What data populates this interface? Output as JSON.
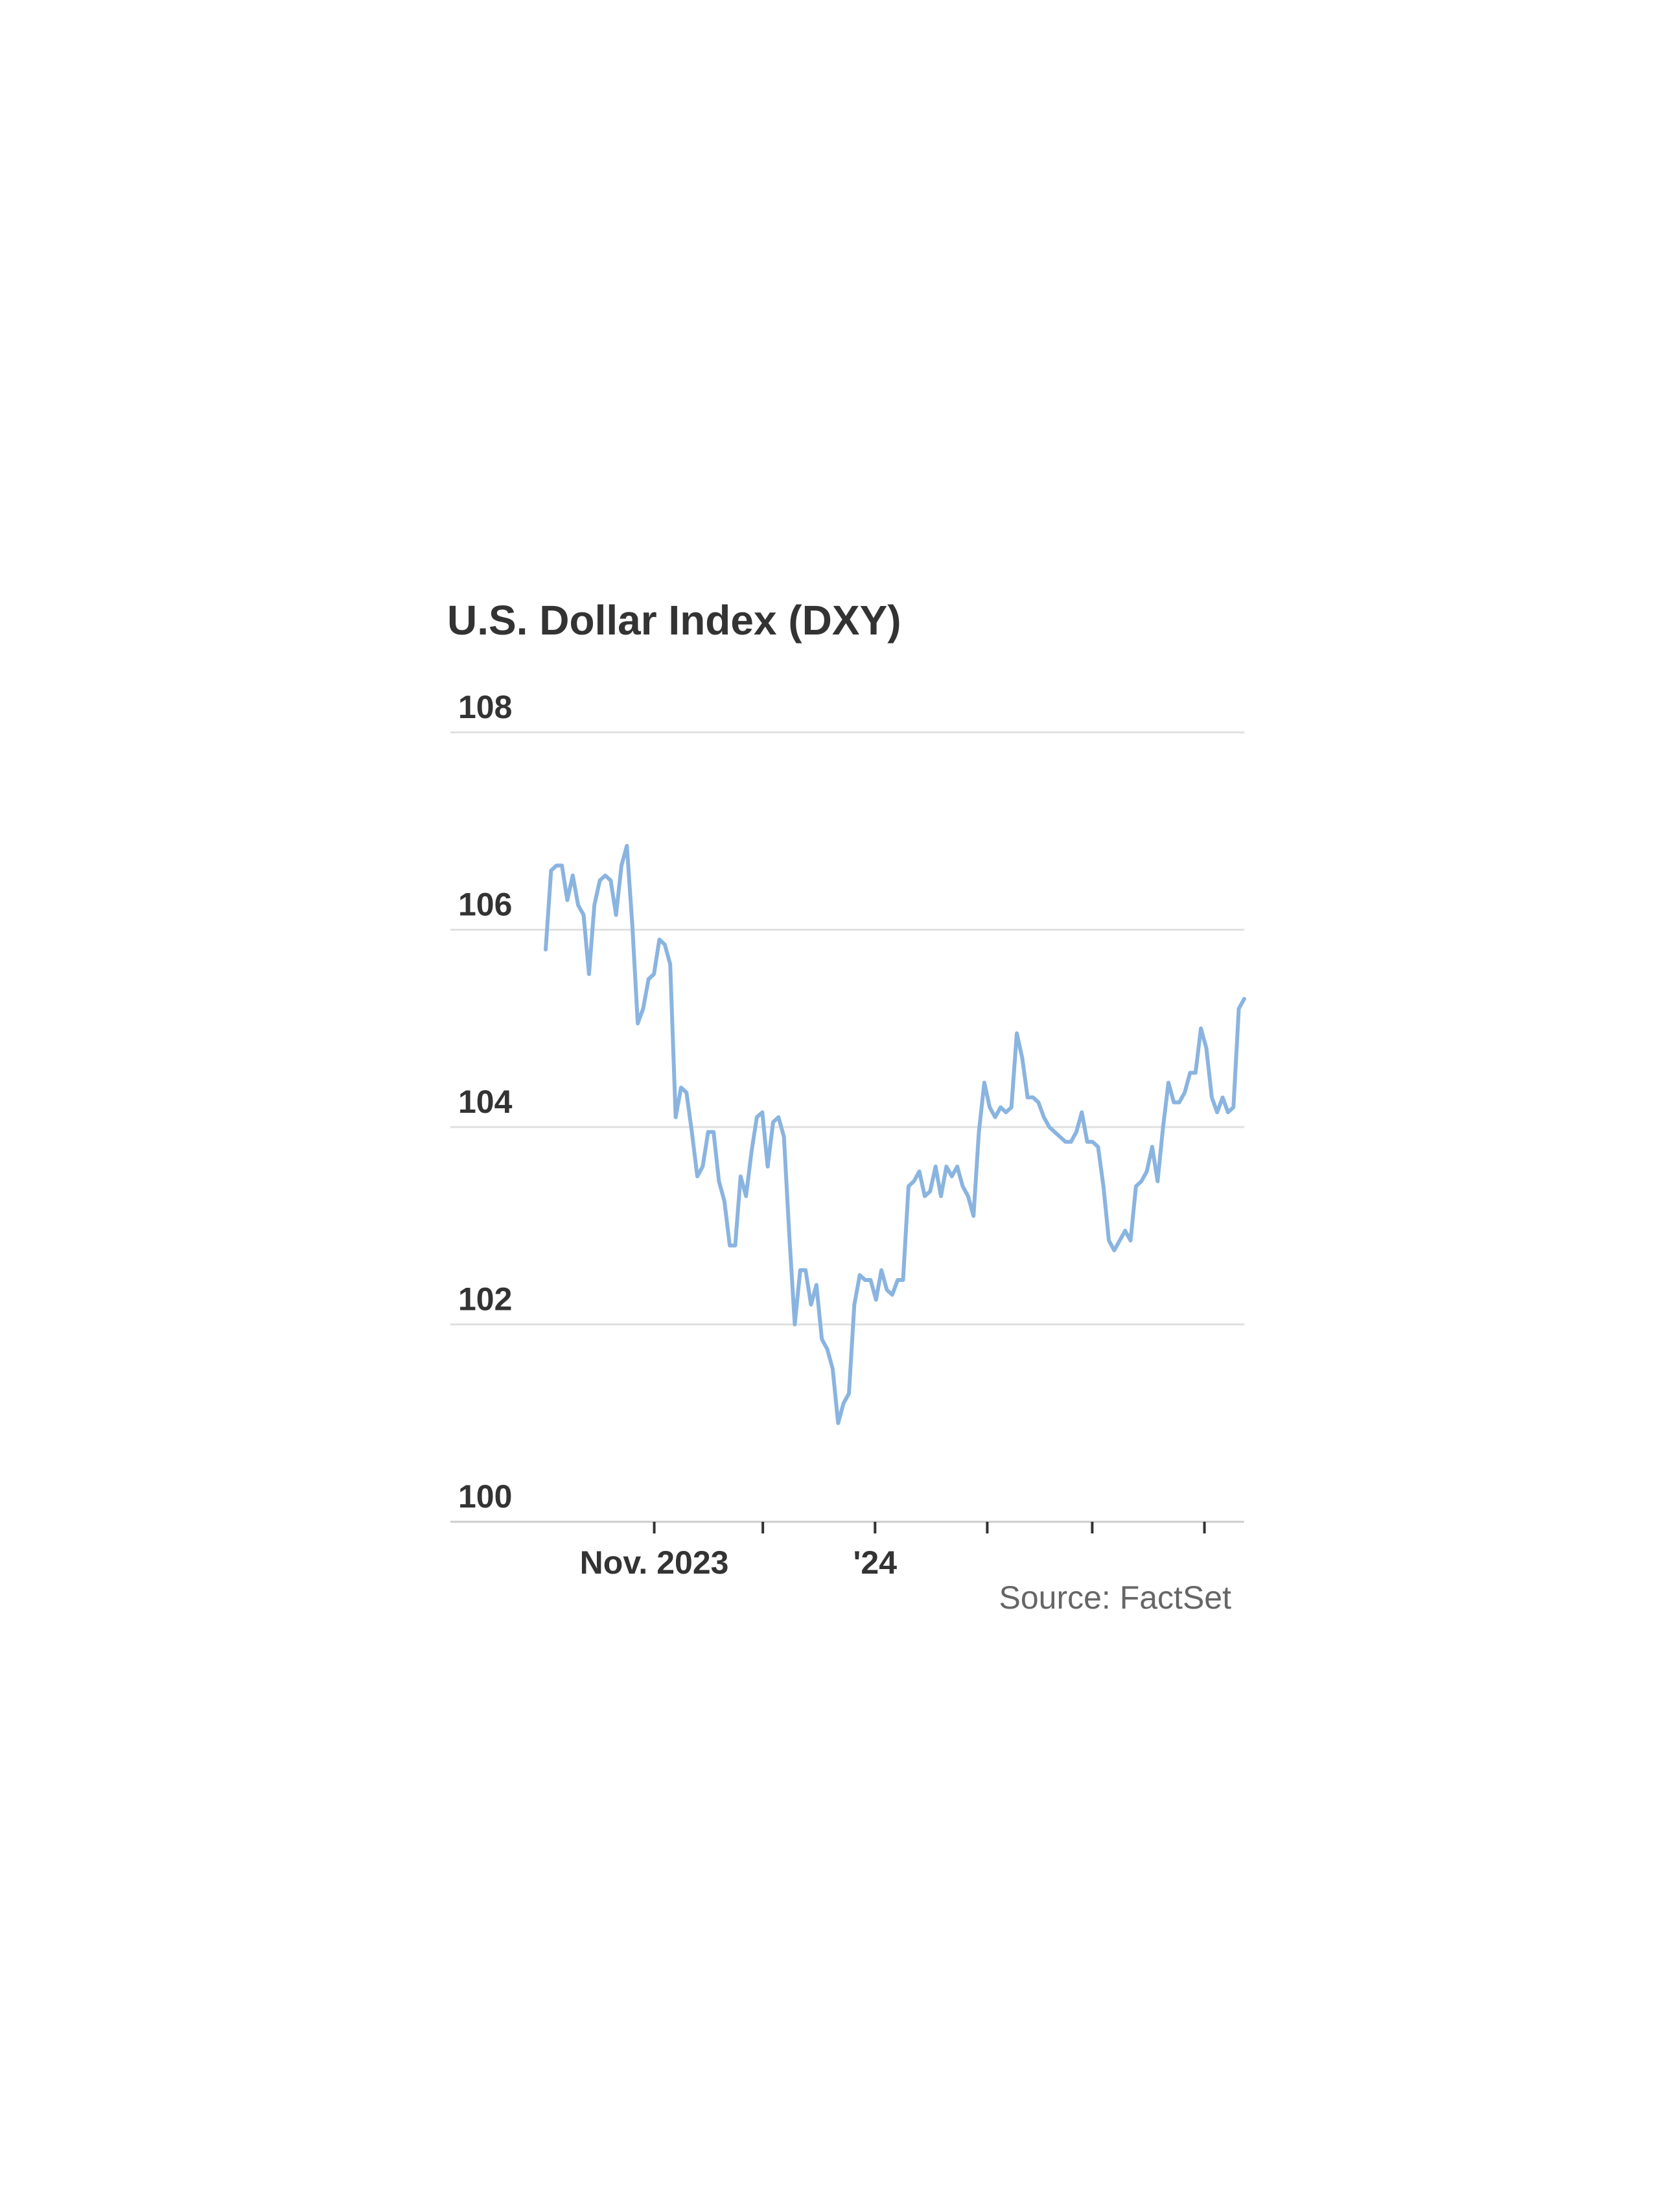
{
  "chart_data": {
    "type": "line",
    "title": "U.S. Dollar Index (DXY)",
    "source": "Source: FactSet",
    "xlabel": "",
    "ylabel": "",
    "ylim": [
      100,
      108
    ],
    "yticks": [
      100,
      102,
      104,
      106,
      108
    ],
    "grid": true,
    "x_start": "2023-10-02",
    "x_end": "2024-04-12",
    "xticks": [
      {
        "date": "2023-11-01",
        "label": "Nov. 2023"
      },
      {
        "date": "2023-12-01",
        "label": ""
      },
      {
        "date": "2024-01-01",
        "label": "'24"
      },
      {
        "date": "2024-02-01",
        "label": ""
      },
      {
        "date": "2024-03-01",
        "label": ""
      },
      {
        "date": "2024-04-01",
        "label": ""
      }
    ],
    "line_color": "#8ab4e0",
    "series": [
      {
        "values": [
          105.8,
          106.6,
          106.65,
          106.65,
          106.3,
          106.55,
          106.25,
          106.15,
          105.55,
          106.25,
          106.5,
          106.55,
          106.5,
          106.15,
          106.65,
          106.85,
          106.05,
          105.05,
          105.2,
          105.5,
          105.55,
          105.9,
          105.85,
          105.65,
          104.1,
          104.4,
          104.35,
          103.95,
          103.5,
          103.6,
          103.95,
          103.95,
          103.45,
          103.25,
          102.8,
          102.8,
          103.5,
          103.3,
          103.75,
          104.1,
          104.15,
          103.6,
          104.05,
          104.1,
          103.9,
          102.9,
          102.0,
          102.55,
          102.55,
          102.2,
          102.4,
          101.85,
          101.75,
          101.55,
          101.0,
          101.2,
          101.3,
          102.2,
          102.5,
          102.45,
          102.45,
          102.25,
          102.55,
          102.35,
          102.3,
          102.45,
          102.45,
          103.4,
          103.45,
          103.55,
          103.3,
          103.35,
          103.6,
          103.3,
          103.6,
          103.5,
          103.6,
          103.4,
          103.3,
          103.1,
          103.95,
          104.45,
          104.2,
          104.1,
          104.2,
          104.15,
          104.2,
          104.95,
          104.7,
          104.3,
          104.3,
          104.25,
          104.1,
          104.0,
          103.95,
          103.9,
          103.85,
          103.85,
          103.95,
          104.15,
          103.85,
          103.85,
          103.8,
          103.4,
          102.85,
          102.75,
          102.85,
          102.95,
          102.85,
          103.4,
          103.45,
          103.55,
          103.8,
          103.45,
          104.0,
          104.45,
          104.25,
          104.25,
          104.35,
          104.55,
          104.55,
          105.0,
          104.8,
          104.3,
          104.15,
          104.3,
          104.15,
          104.2,
          105.2,
          105.3
        ]
      }
    ]
  }
}
